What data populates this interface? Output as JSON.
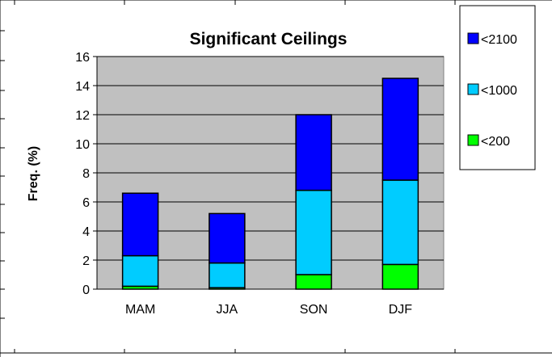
{
  "chart_data": {
    "type": "bar",
    "stacked": true,
    "title": "Significant Ceilings",
    "xlabel": "",
    "ylabel": "Freq. (%)",
    "categories": [
      "MAM",
      "JJA",
      "SON",
      "DJF"
    ],
    "ylim": [
      0,
      16
    ],
    "yticks": [
      "0",
      "2",
      "4",
      "6",
      "8",
      "10",
      "12",
      "14",
      "16"
    ],
    "grid": true,
    "legend_position": "top-right",
    "plot_background": "#c0c0c0",
    "series": [
      {
        "name": "<200",
        "color": "#00ff00",
        "values": [
          0.2,
          0.1,
          1.0,
          1.7
        ]
      },
      {
        "name": "<1000",
        "color": "#00ccff",
        "values": [
          2.1,
          1.7,
          5.8,
          5.8
        ]
      },
      {
        "name": "<2100",
        "color": "#0000ff",
        "values": [
          4.3,
          3.4,
          5.2,
          7.0
        ]
      }
    ],
    "legend_order": [
      "<2100",
      "<1000",
      "<200"
    ]
  }
}
